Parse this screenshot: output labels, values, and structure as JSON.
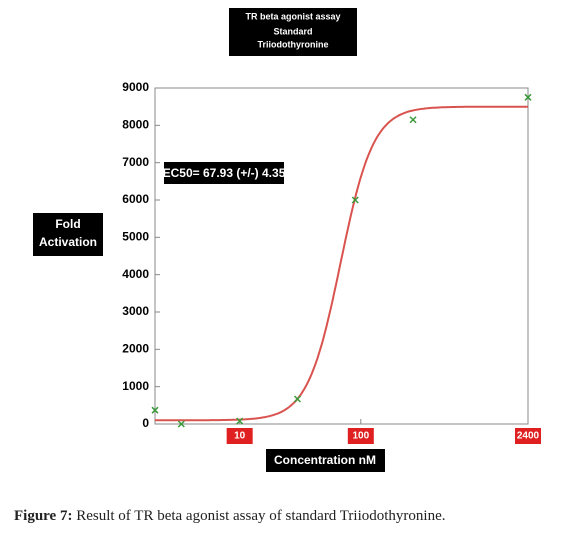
{
  "chart_data": {
    "type": "scatter",
    "title": [
      "TR beta agonist assay",
      "Standard",
      "Triiodothyronine"
    ],
    "x_label": "Concentration nM",
    "y_label": [
      "Fold",
      "Activation"
    ],
    "annotation": "EC50= 67.93 (+/-) 4.35",
    "log_x": true,
    "grid": false,
    "xlim": [
      2,
      2400
    ],
    "xticks": [
      10,
      100,
      2400
    ],
    "ylim": [
      0,
      9000
    ],
    "yticks": [
      0,
      1000,
      2000,
      3000,
      4000,
      5000,
      6000,
      7000,
      8000,
      9000
    ],
    "x": [
      2,
      3.3,
      10,
      30,
      90,
      270,
      2400
    ],
    "values": [
      370,
      0,
      80,
      670,
      6000,
      8150,
      8750
    ],
    "color": "#3a9a3a",
    "fit": {
      "color": "#d9534f",
      "bottom": 100,
      "top": 8500,
      "ec50": 67.93,
      "hill": 3.2
    }
  },
  "caption": {
    "label": "Figure 7:",
    "text": "Result of TR beta agonist assay of standard Triiodothyronine."
  }
}
